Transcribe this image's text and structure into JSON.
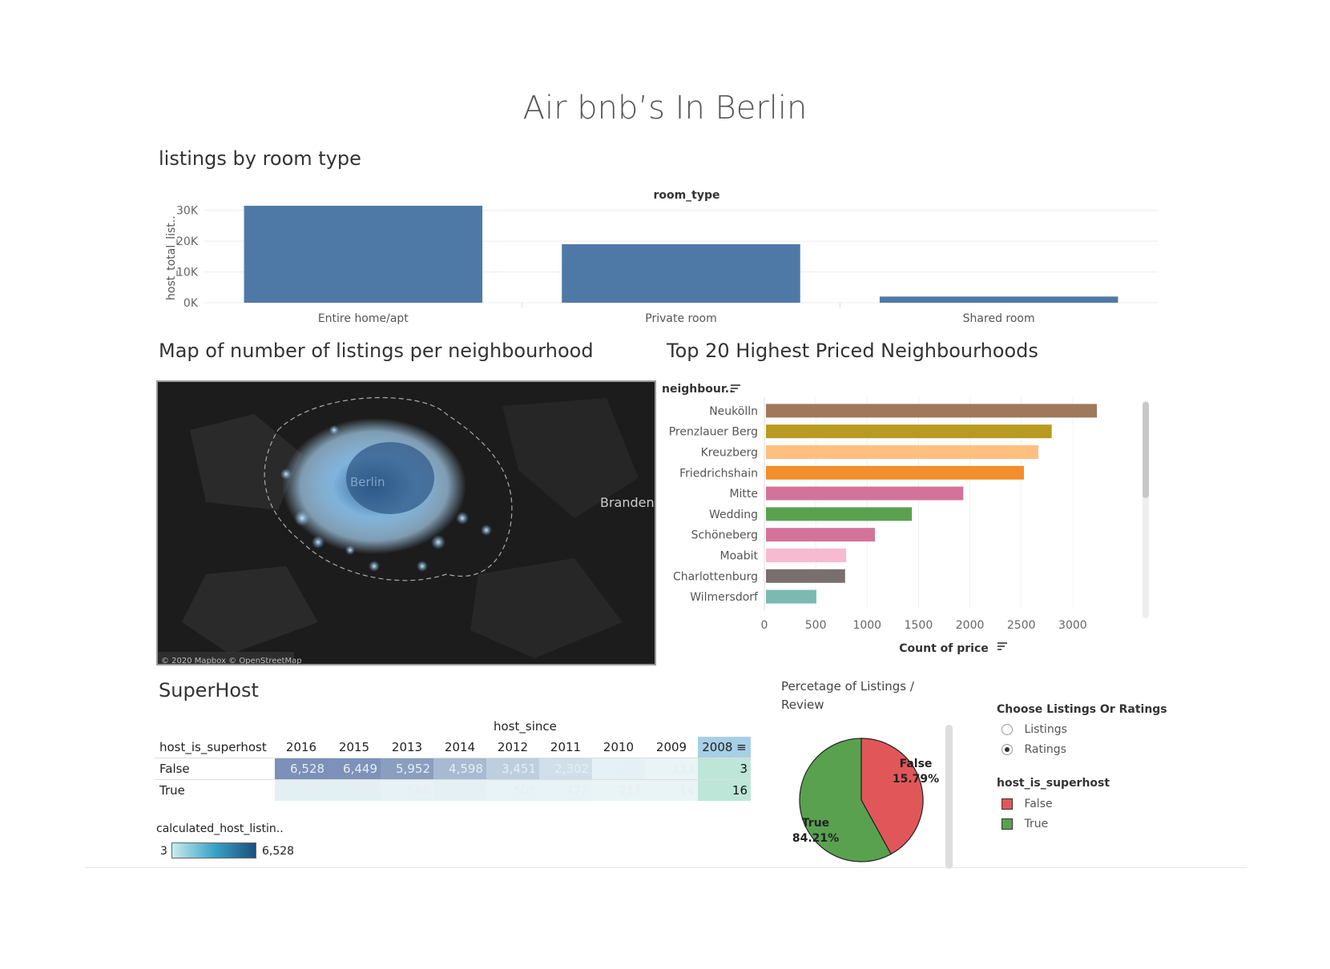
{
  "title": "Air bnb’s In Berlin",
  "room_type_chart": {
    "title": "listings by room type",
    "column_header": "room_type",
    "y_axis_label": "host_total_list..",
    "y_ticks": [
      "30K",
      "20K",
      "10K",
      "0K"
    ],
    "chart_data": {
      "type": "bar",
      "categories": [
        "Entire home/apt",
        "Private room",
        "Shared room"
      ],
      "values": [
        31500,
        19000,
        2000
      ],
      "ylabel": "host_total_list..",
      "ylim": [
        0,
        32000
      ]
    }
  },
  "map": {
    "title": "Map of number of listings per neighbourhood",
    "city_label": "Berlin",
    "region_label": "Branden",
    "attribution": "© 2020 Mapbox © OpenStreetMap"
  },
  "neighbourhood_chart": {
    "title": "Top 20 Highest Priced Neighbourhoods",
    "row_header": "neighbour..",
    "x_axis_label": "Count of price",
    "x_ticks": [
      "0",
      "500",
      "1000",
      "1500",
      "2000",
      "2500",
      "3000"
    ],
    "chart_data": {
      "type": "bar",
      "orientation": "horizontal",
      "categories": [
        "Neukölln",
        "Prenzlauer Berg",
        "Kreuzberg",
        "Friedrichshain",
        "Mitte",
        "Wedding",
        "Schöneberg",
        "Moabit",
        "Charlottenburg",
        "Wilmersdorf"
      ],
      "values": [
        3220,
        2780,
        2650,
        2510,
        1920,
        1420,
        1060,
        780,
        770,
        490
      ],
      "colors": [
        "#a0785a",
        "#b99a21",
        "#ffbf7e",
        "#f28e2b",
        "#d4739a",
        "#59a14f",
        "#d4739a",
        "#f8bad0",
        "#7a6f6f",
        "#7bb9b1"
      ],
      "xlim": [
        0,
        3500
      ]
    }
  },
  "superhost": {
    "title": "SuperHost",
    "column_header": "host_since",
    "row_header": "host_is_superhost",
    "years": [
      "2016",
      "2015",
      "2013",
      "2014",
      "2012",
      "2011",
      "2010",
      "2009",
      "2008"
    ],
    "rows": [
      {
        "label": "False",
        "values": [
          "6,528",
          "6,449",
          "5,952",
          "4,598",
          "3,451",
          "2,302",
          "634",
          "113",
          "3"
        ]
      },
      {
        "label": "True",
        "values": [
          "920",
          "916",
          "566",
          "767",
          "505",
          "473",
          "211",
          "14",
          "16"
        ]
      }
    ],
    "legend_title": "calculated_host_listin..",
    "legend_min": "3",
    "legend_max": "6,528"
  },
  "pie": {
    "title_line1": "Percetage of Listings /",
    "title_line2": "Review",
    "chart_data": {
      "type": "pie",
      "labels": [
        "False",
        "True"
      ],
      "values": [
        15.79,
        84.21
      ],
      "value_labels": [
        "15.79%",
        "84.21%"
      ],
      "colors": [
        "#e15759",
        "#59a14f"
      ]
    }
  },
  "controls": {
    "param_title": "Choose Listings Or Ratings",
    "options": [
      "Listings",
      "Ratings"
    ],
    "selected": "Ratings",
    "legend_title": "host_is_superhost",
    "legend_items": [
      {
        "label": "False",
        "color": "#e15759"
      },
      {
        "label": "True",
        "color": "#59a14f"
      }
    ]
  }
}
